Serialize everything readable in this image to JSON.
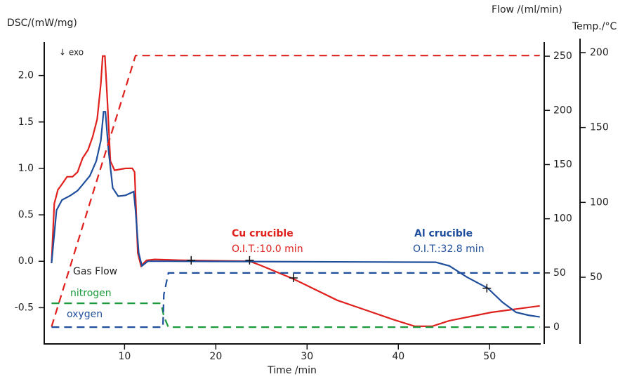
{
  "chart_data": {
    "type": "line",
    "xlabel": "Time /min",
    "ylabel": "DSC/(mW/mg)",
    "y2label": "Flow /(ml/min)",
    "y3label": "Temp./°C",
    "xlim": [
      1.2,
      55.6
    ],
    "xticks": [
      10,
      20,
      30,
      40,
      50
    ],
    "ylim": [
      -0.89,
      2.36
    ],
    "yticks": [
      -0.5,
      {
        "value": 0,
        "label": "0.0"
      },
      0.5,
      {
        "value": 1,
        "label": "1.0"
      },
      1.5,
      {
        "value": 2,
        "label": "2.0"
      }
    ],
    "y2lim": [
      -15.5,
      263
    ],
    "y2ticks": [
      0,
      50,
      100,
      150,
      200,
      250
    ],
    "y3lim": [
      5.5,
      207
    ],
    "y3ticks": [
      50,
      100,
      150,
      200
    ],
    "series": [
      {
        "name": "Cu crucible",
        "color": "#e0201c",
        "axis": "y",
        "x": [
          2.0,
          2.3,
          2.7,
          3.15,
          3.7,
          4.3,
          4.85,
          5.4,
          6.0,
          6.5,
          7.0,
          7.4,
          7.6,
          7.85,
          8.1,
          8.45,
          8.9,
          10.1,
          10.85,
          11.1,
          11.45,
          11.8,
          12.4,
          13.3,
          16.4,
          23.7,
          24.8,
          28.5,
          33.3,
          39.5,
          41.8,
          43.7,
          45.6,
          50.2,
          55.5
        ],
        "values": [
          -0.02,
          0.62,
          0.77,
          0.83,
          0.91,
          0.91,
          0.96,
          1.11,
          1.2,
          1.34,
          1.53,
          1.91,
          2.21,
          2.21,
          1.76,
          1.08,
          0.98,
          1.0,
          1.0,
          0.96,
          0.09,
          -0.05,
          0.01,
          0.02,
          0.01,
          0.0,
          -0.04,
          -0.19,
          -0.42,
          -0.63,
          -0.7,
          -0.7,
          -0.64,
          -0.55,
          -0.48
        ]
      },
      {
        "name": "Al crucible",
        "color": "#1f4e9c",
        "axis": "y",
        "x": [
          2.0,
          2.55,
          3.15,
          4.1,
          4.85,
          5.45,
          6.2,
          6.9,
          7.4,
          7.7,
          7.9,
          8.25,
          8.7,
          9.3,
          10.1,
          11.0,
          11.2,
          11.55,
          11.9,
          12.55,
          14.8,
          44.1,
          45.6,
          47.5,
          49.8,
          51.4,
          52.9,
          54.2,
          55.5
        ],
        "values": [
          -0.02,
          0.55,
          0.66,
          0.71,
          0.76,
          0.83,
          0.92,
          1.08,
          1.3,
          1.61,
          1.61,
          1.19,
          0.79,
          0.7,
          0.71,
          0.75,
          0.55,
          0.09,
          -0.05,
          0.0,
          0.0,
          -0.01,
          -0.05,
          -0.17,
          -0.29,
          -0.44,
          -0.55,
          -0.58,
          -0.6
        ]
      },
      {
        "color": "#e0201c",
        "axis": "y3",
        "dashed": true,
        "x": [
          2.0,
          11.2,
          55.5
        ],
        "values": [
          17,
          198,
          198
        ]
      },
      {
        "name": "nitrogen",
        "color": "#1a9a3a",
        "axis": "y2",
        "dashed": true,
        "x": [
          2.0,
          14.0,
          14.3,
          14.8,
          55.5
        ],
        "values": [
          22,
          22,
          10,
          0,
          0
        ]
      },
      {
        "name": "oxygen",
        "color": "#1f4e9c",
        "axis": "y2",
        "dashed": true,
        "x": [
          2.0,
          14.2,
          14.3,
          14.8,
          55.5
        ],
        "values": [
          0,
          0,
          30,
          50,
          50
        ]
      }
    ],
    "markers": [
      {
        "x": 17.3,
        "y": 0.01
      },
      {
        "x": 23.7,
        "y": 0.01
      },
      {
        "x": 28.5,
        "y": -0.18
      },
      {
        "x": 49.7,
        "y": -0.29
      }
    ],
    "annotations": [
      "↓ exo",
      "Gas Flow",
      "O.I.T.:10.0 min",
      "O.I.T.:32.8 min"
    ]
  }
}
